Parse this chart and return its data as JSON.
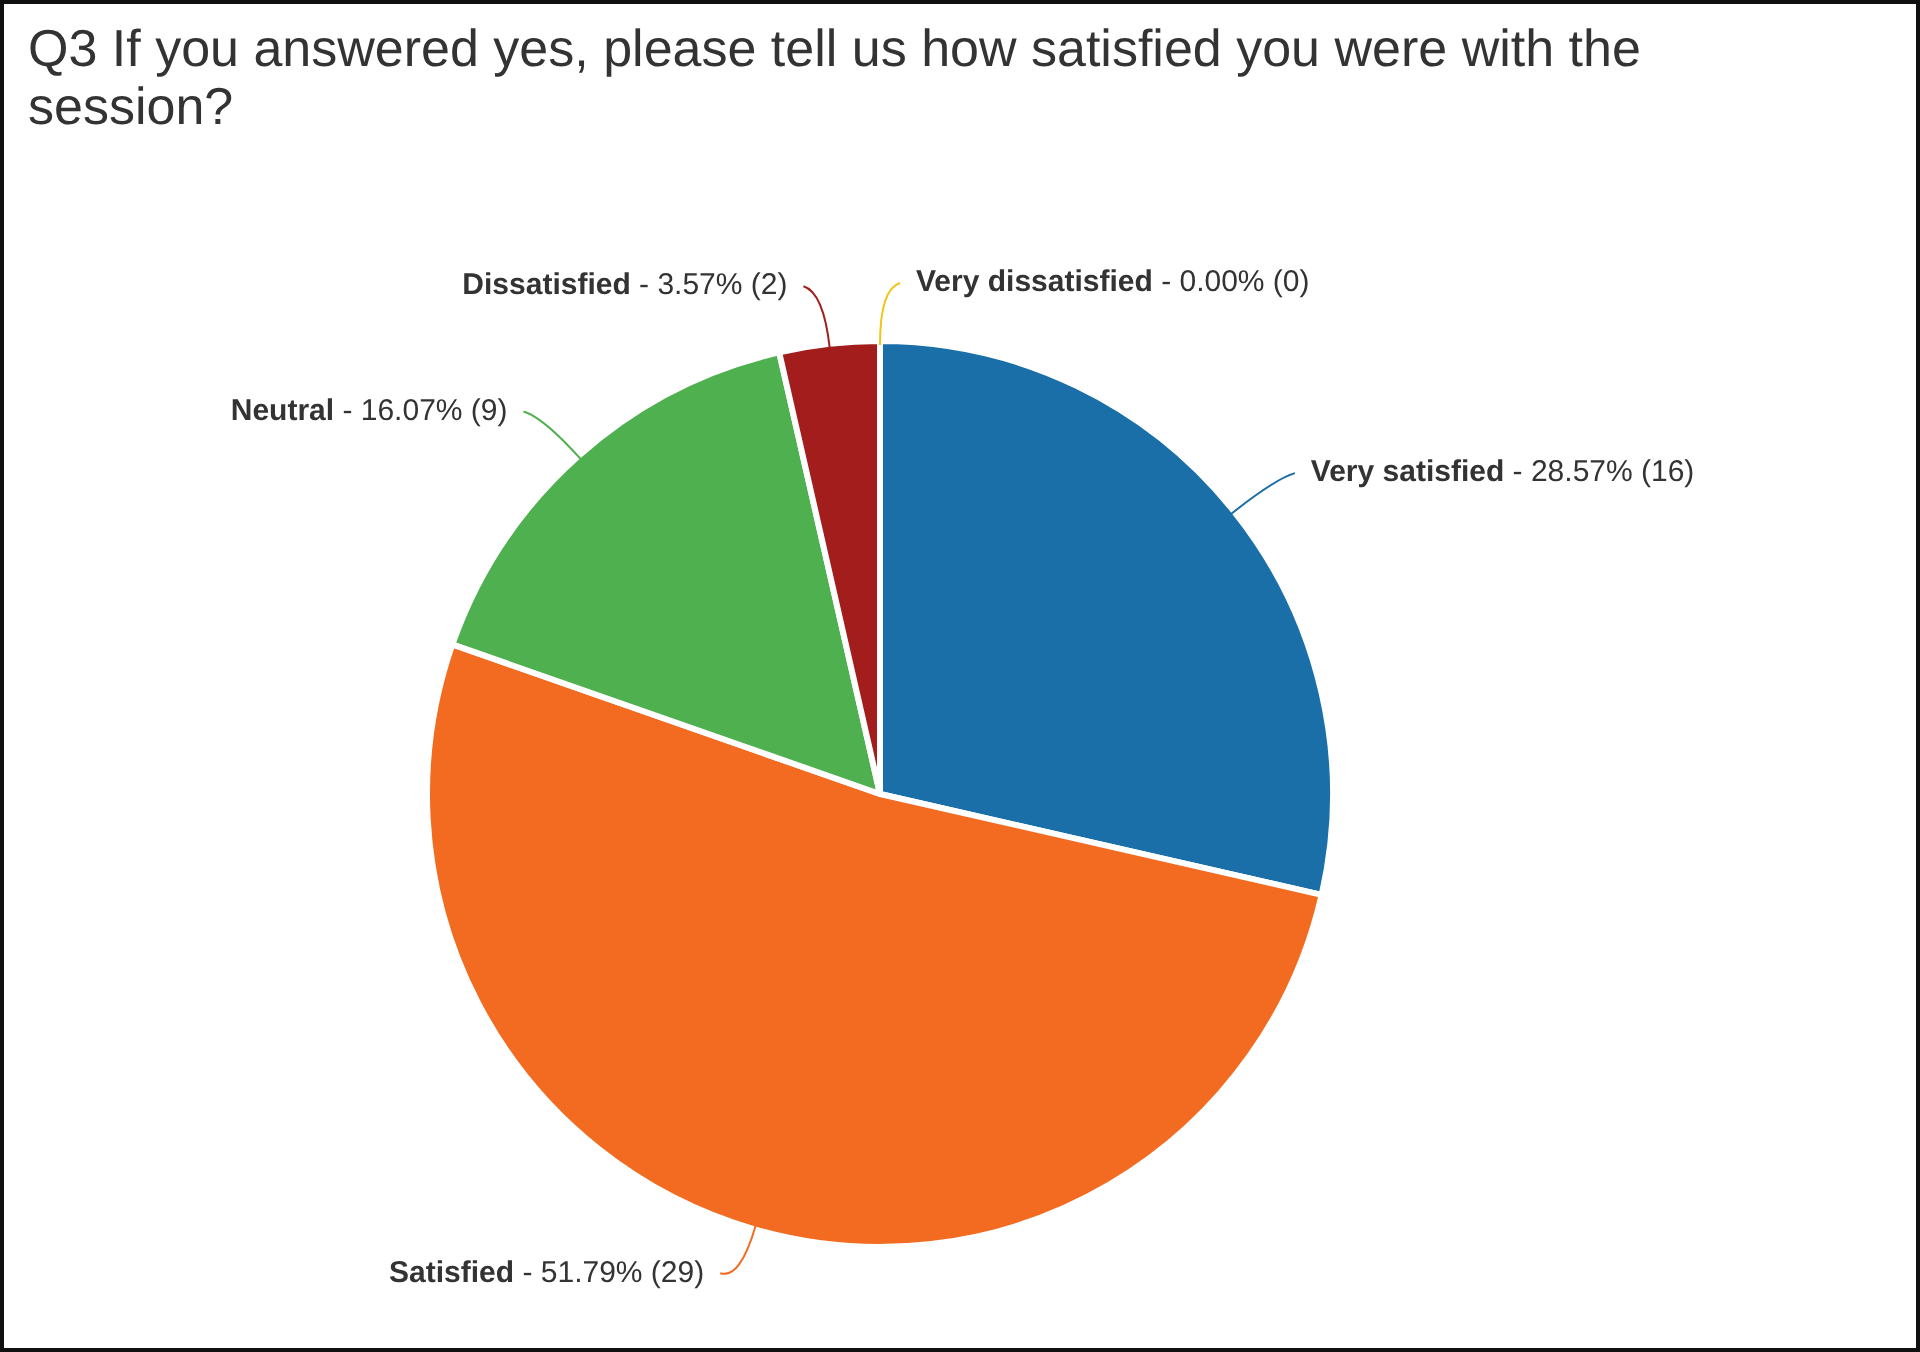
{
  "chart_data": {
    "type": "pie",
    "title": "Q3 If you answered yes, please tell us how satisfied you were with the session?",
    "categories": [
      "Very satisfied",
      "Satisfied",
      "Neutral",
      "Dissatisfied",
      "Very dissatisfied"
    ],
    "values": [
      16,
      29,
      9,
      2,
      0
    ],
    "colors": [
      "#1a6fa8",
      "#f26b21",
      "#4fb04f",
      "#a31d1d",
      "#f0c419"
    ],
    "value_labels": [
      "- 28.57% (16)",
      "- 51.79% (29)",
      "- 16.07% (9)",
      "- 3.57% (2)",
      "- 0.00% (0)"
    ],
    "legend": false
  }
}
